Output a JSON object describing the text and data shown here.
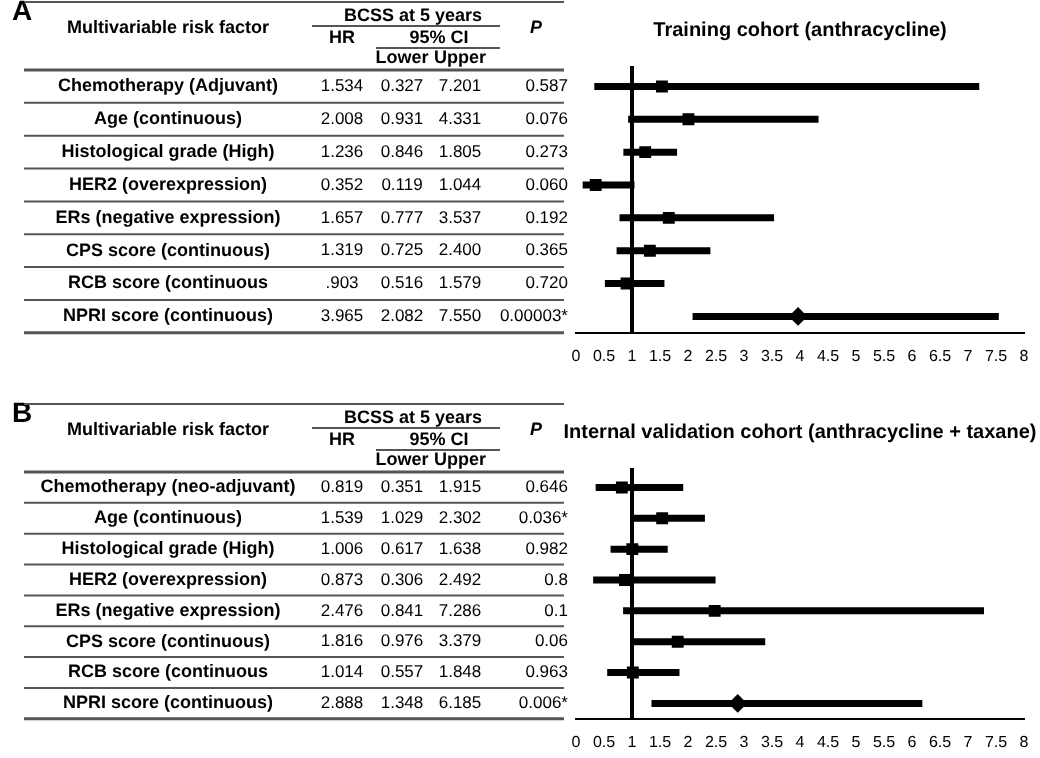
{
  "chart_data": [
    {
      "type": "scatter",
      "orientation": "horizontal",
      "title": "Training cohort (anthracycline)",
      "categories": [
        "Chemotherapy (Adjuvant)",
        "Age (continuous)",
        "Histological grade (High)",
        "HER2 (overexpression)",
        "ERs (negative expression)",
        "CPS score (continuous)",
        "RCB score (continuous",
        "NPRI score (continuous)"
      ],
      "series": [
        {
          "color": "#000000",
          "marker": "square",
          "values": [
            1.534,
            2.008,
            1.236,
            0.352,
            1.657,
            1.319,
            0.903,
            null
          ],
          "errors": [
            [
              0.327,
              7.201
            ],
            [
              0.931,
              4.331
            ],
            [
              0.846,
              1.805
            ],
            [
              0.119,
              1.044
            ],
            [
              0.777,
              3.537
            ],
            [
              0.725,
              2.4
            ],
            [
              0.516,
              1.579
            ],
            null
          ]
        },
        {
          "color": "#000000",
          "marker": "diamond",
          "values": [
            null,
            null,
            null,
            null,
            null,
            null,
            null,
            3.965
          ],
          "errors": [
            null,
            null,
            null,
            null,
            null,
            null,
            null,
            [
              2.082,
              7.55
            ]
          ]
        }
      ],
      "xlim": [
        0,
        8
      ],
      "xticks": [
        0,
        0.5,
        1,
        1.5,
        2,
        2.5,
        3,
        3.5,
        4,
        4.5,
        5,
        5.5,
        6,
        6.5,
        7,
        7.5,
        8
      ],
      "tick_labels": "x",
      "grid": false,
      "legend": false,
      "ref_lines": [
        {
          "axis": "x",
          "value": 1
        }
      ],
      "annotations": [
        "A",
        "Multivariable risk factor",
        "BCSS at 5 years",
        "HR",
        "95% CI",
        "Lower",
        "Upper",
        "P",
        "1.534",
        "0.327",
        "7.201",
        "0.587",
        "2.008",
        "0.931",
        "4.331",
        "0.076",
        "1.236",
        "0.846",
        "1.805",
        "0.273",
        "0.352",
        "0.119",
        "1.044",
        "0.060",
        "1.657",
        "0.777",
        "3.537",
        "0.192",
        "1.319",
        "0.725",
        "2.400",
        "0.365",
        ".903",
        "0.516",
        "1.579",
        "0.720",
        "3.965",
        "2.082",
        "7.550",
        "0.00003*"
      ]
    },
    {
      "type": "scatter",
      "orientation": "horizontal",
      "title": "Internal validation cohort (anthracycline + taxane)",
      "categories": [
        "Chemotherapy (neo-adjuvant)",
        "Age (continuous)",
        "Histological grade (High)",
        "HER2 (overexpression)",
        "ERs (negative expression)",
        "CPS score (continuous)",
        "RCB score (continuous",
        "NPRI score (continuous)"
      ],
      "series": [
        {
          "color": "#000000",
          "marker": "square",
          "values": [
            0.819,
            1.539,
            1.006,
            0.873,
            2.476,
            1.816,
            1.014,
            null
          ],
          "errors": [
            [
              0.351,
              1.915
            ],
            [
              1.029,
              2.302
            ],
            [
              0.617,
              1.638
            ],
            [
              0.306,
              2.492
            ],
            [
              0.841,
              7.286
            ],
            [
              0.976,
              3.379
            ],
            [
              0.557,
              1.848
            ],
            null
          ]
        },
        {
          "color": "#000000",
          "marker": "diamond",
          "values": [
            null,
            null,
            null,
            null,
            null,
            null,
            null,
            2.888
          ],
          "errors": [
            null,
            null,
            null,
            null,
            null,
            null,
            null,
            [
              1.348,
              6.185
            ]
          ]
        }
      ],
      "xlim": [
        0,
        8
      ],
      "xticks": [
        0,
        0.5,
        1,
        1.5,
        2,
        2.5,
        3,
        3.5,
        4,
        4.5,
        5,
        5.5,
        6,
        6.5,
        7,
        7.5,
        8
      ],
      "tick_labels": "x",
      "grid": false,
      "legend": false,
      "ref_lines": [
        {
          "axis": "x",
          "value": 1
        }
      ],
      "annotations": [
        "B",
        "Multivariable risk factor",
        "BCSS at 5 years",
        "HR",
        "95% CI",
        "Lower",
        "Upper",
        "P",
        "0.819",
        "0.351",
        "1.915",
        "0.646",
        "1.539",
        "1.029",
        "2.302",
        "0.036*",
        "1.006",
        "0.617",
        "1.638",
        "0.982",
        "0.873",
        "0.306",
        "2.492",
        "0.8",
        "2.476",
        "0.841",
        "7.286",
        "0.1",
        "1.816",
        "0.976",
        "3.379",
        "0.06",
        "1.014",
        "0.557",
        "1.848",
        "0.963",
        "2.888",
        "1.348",
        "6.185",
        "0.006*"
      ]
    }
  ]
}
